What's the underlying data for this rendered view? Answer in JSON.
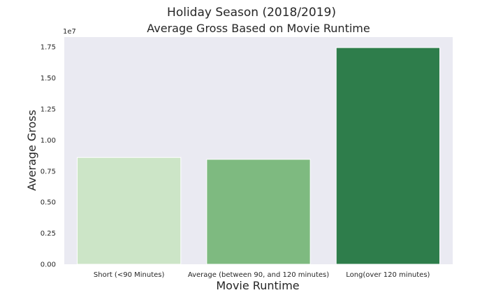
{
  "chart_data": {
    "type": "bar",
    "suptitle": "Holiday Season (2018/2019)",
    "title": "Average Gross Based on Movie Runtime",
    "xlabel": "Movie Runtime",
    "ylabel": "Average Gross",
    "offset_label": "1e7",
    "categories": [
      "Short (<90 Minutes)",
      "Average (between 90, and 120 minutes)",
      "Long(over 120 minutes)"
    ],
    "values": [
      8600000,
      8450000,
      17450000
    ],
    "colors": [
      "#cce5c7",
      "#7eba80",
      "#2e7d4b"
    ],
    "ylim": [
      0,
      18300000
    ],
    "yticks": [
      0,
      2500000,
      5000000,
      7500000,
      10000000,
      12500000,
      15000000,
      17500000
    ],
    "ytick_labels": [
      "0.00",
      "0.25",
      "0.50",
      "0.75",
      "1.00",
      "1.25",
      "1.50",
      "1.75"
    ],
    "grid": false,
    "background": "#eaeaf2"
  }
}
